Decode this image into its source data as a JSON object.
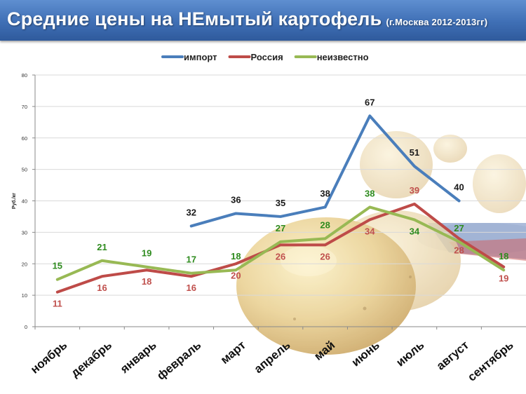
{
  "header": {
    "title": "Средние цены на НЕмытый картофель",
    "subtitle": "(г.Москва 2012-2013гг)"
  },
  "chart_data": {
    "type": "line",
    "ylabel": "Руб./кг",
    "ylim": [
      0,
      80
    ],
    "yticks": [
      0,
      10,
      20,
      30,
      40,
      50,
      60,
      70,
      80
    ],
    "grid": true,
    "legend_position": "top",
    "categories": [
      "ноябрь",
      "декабрь",
      "январь",
      "февраль",
      "март",
      "апрель",
      "май",
      "июнь",
      "июль",
      "август",
      "сентябрь"
    ],
    "series": [
      {
        "name": "импорт",
        "color": "#4a7ebb",
        "label_color": "#1a1a1a",
        "values": [
          null,
          null,
          null,
          32,
          36,
          35,
          38,
          67,
          51,
          40,
          null
        ]
      },
      {
        "name": "Россия",
        "color": "#be4b48",
        "label_color": "#c0504d",
        "values": [
          11,
          16,
          18,
          16,
          20,
          26,
          26,
          34,
          39,
          28,
          19
        ]
      },
      {
        "name": "неизвестно",
        "color": "#98b954",
        "label_color": "#2e8b1e",
        "values": [
          15,
          21,
          19,
          17,
          18,
          27,
          28,
          38,
          34,
          27,
          18
        ]
      }
    ]
  }
}
